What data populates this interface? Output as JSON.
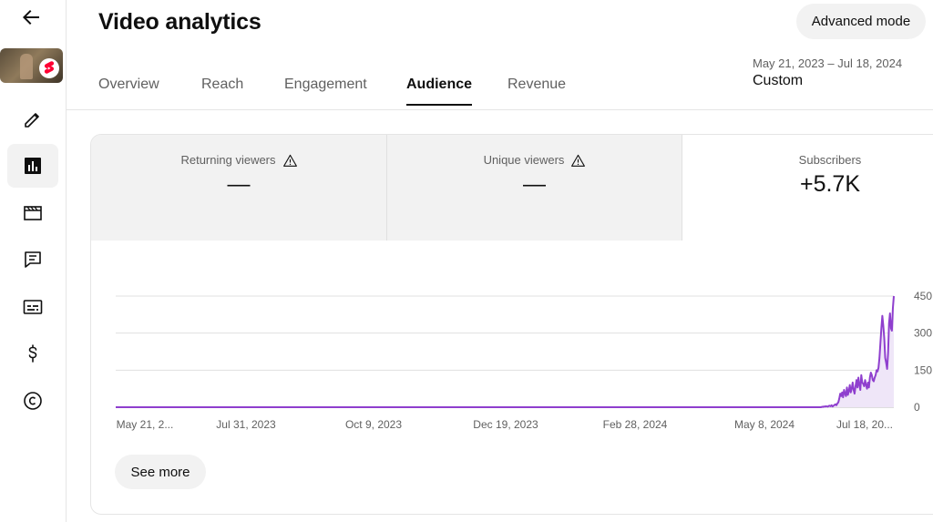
{
  "sidebar": {
    "items": [
      {
        "name": "edit-icon"
      },
      {
        "name": "analytics-icon",
        "active": true
      },
      {
        "name": "editor-icon"
      },
      {
        "name": "comments-icon"
      },
      {
        "name": "subtitles-icon"
      },
      {
        "name": "monetization-icon"
      },
      {
        "name": "copyright-icon"
      }
    ]
  },
  "header": {
    "title": "Video analytics",
    "advanced_mode_label": "Advanced mode",
    "date_range": "May 21, 2023 – Jul 18, 2024",
    "date_preset": "Custom"
  },
  "tabs": [
    {
      "label": "Overview"
    },
    {
      "label": "Reach"
    },
    {
      "label": "Engagement"
    },
    {
      "label": "Audience",
      "active": true
    },
    {
      "label": "Revenue"
    }
  ],
  "metrics": [
    {
      "label": "Returning viewers",
      "value": "—",
      "warning": true
    },
    {
      "label": "Unique viewers",
      "value": "—",
      "warning": true
    },
    {
      "label": "Subscribers",
      "value": "+5.7K",
      "warning": false
    }
  ],
  "see_more_label": "See more",
  "colors": {
    "line": "#8f3fce",
    "fill": "#efe6f8",
    "grid": "#e0e0e0",
    "text_secondary": "#606060"
  },
  "chart_data": {
    "type": "area",
    "x_tick_labels": [
      "May 21, 2...",
      "Jul 31, 2023",
      "Oct 9, 2023",
      "Dec 19, 2023",
      "Feb 28, 2024",
      "May 8, 2024",
      "Jul 18, 20..."
    ],
    "y_tick_labels": [
      "450",
      "300",
      "150",
      "0"
    ],
    "y_ticks": [
      450,
      300,
      150,
      0
    ],
    "ylim": [
      0,
      450
    ],
    "series": [
      {
        "values": [
          0,
          0,
          0,
          0,
          0,
          0,
          0,
          0,
          0,
          0,
          0,
          0,
          0,
          0,
          0,
          0,
          0,
          0,
          0,
          0,
          0,
          0,
          0,
          0,
          0,
          0,
          0,
          0,
          0,
          0,
          0,
          0,
          0,
          0,
          0,
          0,
          0,
          0,
          0,
          0,
          0,
          0,
          0,
          0,
          0,
          0,
          0,
          0,
          0,
          0,
          0,
          0,
          0,
          0,
          0,
          0,
          0,
          0,
          0,
          0,
          0,
          0,
          0,
          0,
          0,
          0,
          0,
          0,
          0,
          0,
          0,
          0,
          0,
          0,
          0,
          0,
          0,
          0,
          0,
          0,
          0,
          0,
          0,
          0,
          0,
          0,
          0,
          0,
          0,
          0,
          0,
          0,
          0,
          0,
          0,
          0,
          0,
          0,
          0,
          0,
          0,
          0,
          0,
          0,
          0,
          0,
          0,
          0,
          0,
          0,
          0,
          0,
          0,
          0,
          0,
          0,
          0,
          0,
          0,
          0,
          0,
          0,
          0,
          0,
          0,
          0,
          0,
          0,
          0,
          0,
          0,
          0,
          0,
          0,
          0,
          0,
          0,
          0,
          0,
          0,
          0,
          0,
          0,
          0,
          0,
          0,
          0,
          0,
          0,
          0,
          0,
          0,
          0,
          0,
          0,
          0,
          0,
          0,
          0,
          0,
          0,
          0,
          0,
          0,
          0,
          0,
          0,
          0,
          0,
          0,
          0,
          0,
          0,
          0,
          0,
          0,
          0,
          0,
          0,
          0,
          0,
          0,
          0,
          0,
          0,
          0,
          0,
          0,
          0,
          0,
          0,
          0,
          0,
          0,
          0,
          0,
          0,
          0,
          0,
          0,
          0,
          0,
          0,
          0,
          0,
          0,
          0,
          0,
          0,
          0,
          0,
          0,
          0,
          0,
          0,
          0,
          0,
          0,
          0,
          0,
          0,
          0,
          0,
          0,
          0,
          0,
          0,
          0,
          0,
          0,
          0,
          0,
          0,
          0,
          0,
          0,
          0,
          0,
          0,
          0,
          0,
          0,
          0,
          0,
          0,
          0,
          0,
          0,
          0,
          0,
          0,
          0,
          0,
          0,
          0,
          0,
          0,
          0,
          0,
          0,
          0,
          0,
          0,
          0,
          0,
          0,
          0,
          0,
          0,
          0,
          0,
          0,
          0,
          0,
          0,
          0,
          0,
          0,
          0,
          0,
          0,
          0,
          0,
          0,
          0,
          0,
          0,
          0,
          0,
          0,
          0,
          0,
          0,
          0,
          0,
          0,
          0,
          0,
          0,
          0,
          0,
          0,
          0,
          0,
          0,
          0,
          0,
          0,
          0,
          0,
          0,
          0,
          0,
          0,
          0,
          0,
          0,
          0,
          0,
          0,
          0,
          0,
          0,
          0,
          0,
          0,
          0,
          0,
          0,
          0,
          0,
          0,
          0,
          0,
          0,
          0,
          0,
          0,
          0,
          0,
          0,
          0,
          0,
          0,
          0,
          0,
          0,
          0,
          0,
          0,
          0,
          0,
          0,
          0,
          0,
          0,
          0,
          0,
          0,
          0,
          0,
          0,
          0,
          0,
          0,
          0,
          0,
          0,
          0,
          0,
          0,
          0,
          0,
          0,
          0,
          0,
          0,
          0,
          0,
          0,
          0,
          0,
          0,
          0,
          0,
          0,
          0,
          0,
          0,
          0,
          0,
          0,
          0,
          0,
          0,
          0,
          0,
          0,
          0,
          0,
          0,
          0,
          0,
          0,
          0,
          0,
          0,
          0,
          0,
          0,
          0,
          0,
          0,
          0,
          0,
          0,
          0,
          0,
          0,
          0,
          0,
          0,
          0,
          0,
          0,
          0,
          0,
          0,
          0,
          0,
          0,
          0,
          0,
          0,
          0,
          0,
          0,
          0,
          0,
          0,
          0,
          0,
          0,
          0,
          0,
          0,
          0,
          0,
          0,
          0,
          0,
          0,
          0,
          0,
          0,
          0,
          0,
          0,
          0,
          0,
          0,
          0,
          0,
          0,
          0,
          0,
          0,
          0,
          0,
          0,
          0,
          0,
          0,
          0,
          0,
          0,
          0,
          0,
          0,
          0,
          0,
          0,
          0,
          0,
          0,
          0,
          0,
          0,
          0,
          0,
          0,
          0,
          0,
          0,
          0,
          0,
          0,
          0,
          0,
          0,
          0,
          0,
          0,
          0,
          0,
          0,
          0,
          0,
          0,
          0,
          0,
          0,
          0,
          0,
          0,
          0,
          0,
          0,
          0,
          0,
          0,
          0,
          0,
          0,
          0,
          0,
          0,
          0,
          0,
          0,
          0,
          0,
          0,
          0,
          0,
          0,
          0,
          0,
          0,
          0,
          0,
          0,
          0,
          0,
          0,
          0,
          0,
          0,
          0,
          0,
          0,
          0,
          0,
          0,
          0,
          0,
          0,
          0,
          0,
          0,
          0,
          0,
          0,
          0,
          0,
          0,
          0,
          0,
          0,
          0,
          0,
          0,
          0,
          0,
          0,
          0,
          0,
          0,
          0,
          0,
          0,
          0,
          0,
          0,
          0,
          0,
          0,
          0,
          0,
          0,
          0,
          0,
          0,
          0,
          0,
          0,
          0,
          0,
          0,
          0,
          0,
          0,
          0,
          0,
          0,
          0,
          0,
          0,
          0,
          0,
          0,
          0,
          0,
          0,
          0,
          0,
          0,
          0,
          0,
          0,
          0,
          0,
          0,
          0,
          0,
          0,
          0,
          0,
          0,
          0,
          0,
          0,
          0,
          0,
          0,
          0,
          0,
          0,
          0,
          0,
          0,
          0,
          0,
          0,
          0,
          0,
          0,
          0,
          0,
          0,
          0,
          0,
          0,
          0,
          0,
          0,
          0,
          0,
          0,
          0,
          0,
          0,
          0,
          0,
          0,
          0,
          0,
          0,
          0,
          0,
          0,
          0,
          0,
          0,
          0,
          0,
          0,
          0,
          0,
          0,
          0,
          0,
          0,
          0,
          0,
          0,
          0,
          0,
          0,
          0,
          0,
          0,
          0,
          0,
          0,
          0,
          0,
          0,
          0,
          0,
          0,
          0,
          0,
          0,
          0,
          0,
          0,
          0,
          0,
          0,
          0,
          0,
          0,
          0,
          0,
          0,
          0,
          0,
          0,
          0,
          0,
          0,
          0,
          0,
          0,
          0,
          0,
          0,
          0,
          0,
          0,
          0,
          0,
          0,
          0,
          0,
          0,
          0,
          2,
          1,
          3,
          2,
          4,
          3,
          2,
          5,
          6,
          4,
          8,
          3,
          6,
          9,
          12,
          8,
          15,
          20,
          35,
          55,
          45,
          60,
          40,
          70,
          55,
          45,
          80,
          50,
          65,
          90,
          60,
          75,
          100,
          70,
          55,
          85,
          110,
          80,
          120,
          90,
          70,
          130,
          100,
          95,
          85,
          110,
          90,
          75,
          100,
          80,
          120,
          140,
          130,
          110,
          105,
          120,
          130,
          150,
          145,
          160,
          200,
          260,
          320,
          370,
          330,
          280,
          200,
          180,
          155,
          220,
          340,
          380,
          320,
          310,
          400,
          450
        ]
      }
    ]
  }
}
